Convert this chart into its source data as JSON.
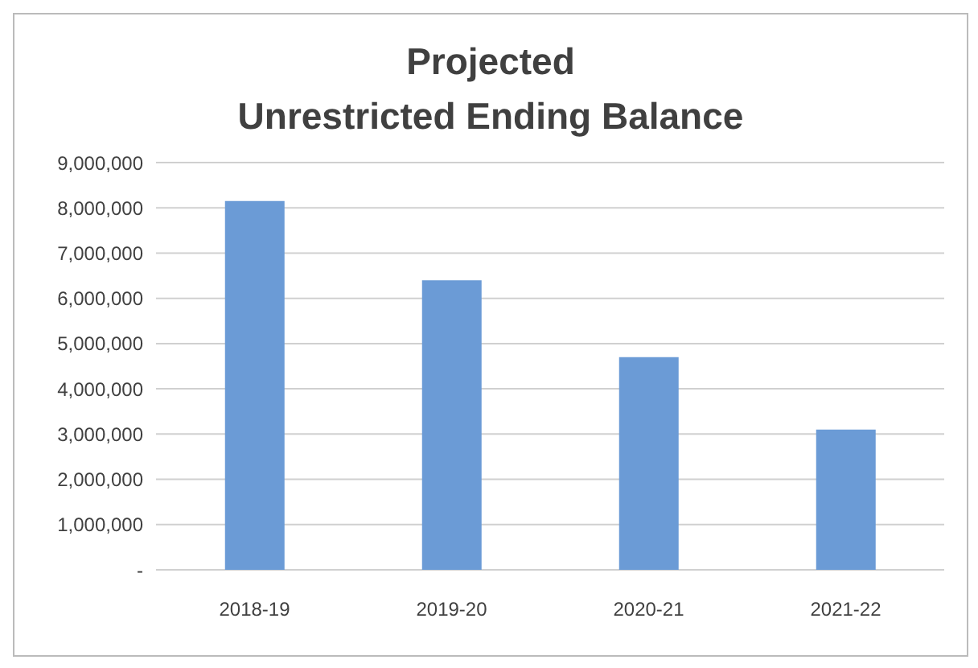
{
  "chart_data": {
    "type": "bar",
    "title": "Projected\nUnrestricted Ending Balance",
    "categories": [
      "2018-19",
      "2019-20",
      "2020-21",
      "2021-22"
    ],
    "values": [
      8150000,
      6400000,
      4700000,
      3100000
    ],
    "color": "#6b9bd6",
    "ylim": [
      0,
      9000000
    ],
    "yticks": [
      {
        "value": 0,
        "label": "-"
      },
      {
        "value": 1000000,
        "label": "1,000,000"
      },
      {
        "value": 2000000,
        "label": "2,000,000"
      },
      {
        "value": 3000000,
        "label": "3,000,000"
      },
      {
        "value": 4000000,
        "label": "4,000,000"
      },
      {
        "value": 5000000,
        "label": "5,000,000"
      },
      {
        "value": 6000000,
        "label": "6,000,000"
      },
      {
        "value": 7000000,
        "label": "7,000,000"
      },
      {
        "value": 8000000,
        "label": "8,000,000"
      },
      {
        "value": 9000000,
        "label": "9,000,000"
      }
    ],
    "grid": "y",
    "legend": false
  }
}
